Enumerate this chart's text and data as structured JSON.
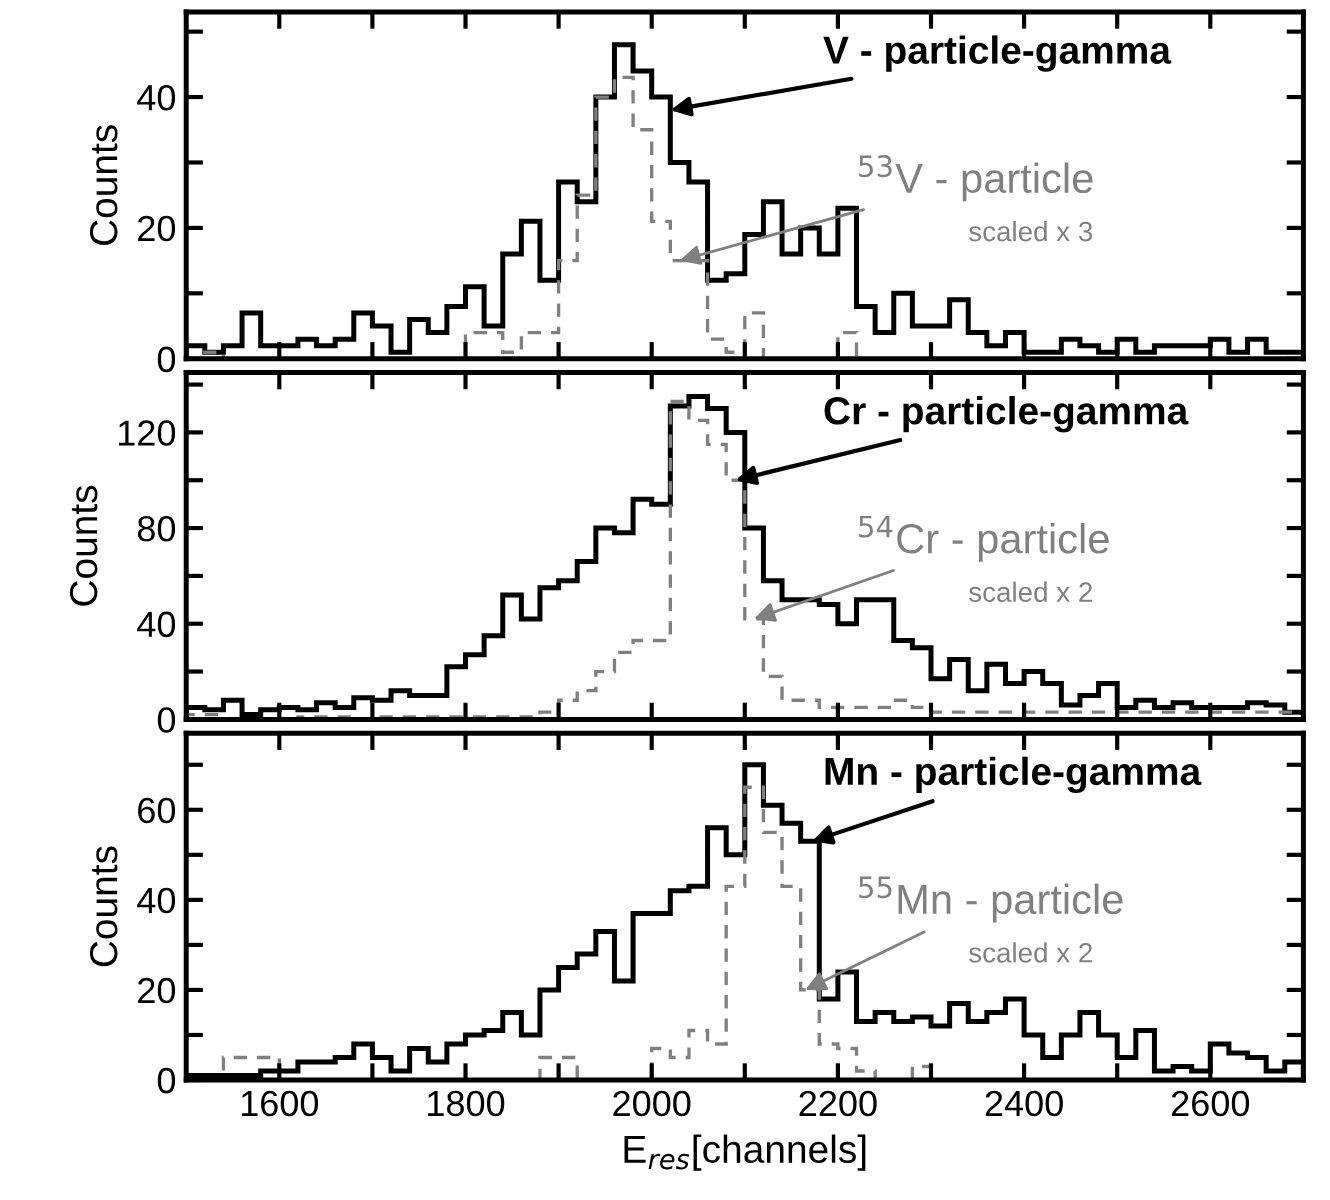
{
  "chart_data": [
    {
      "type": "histogram",
      "ylabel": "Counts",
      "bins": [
        1500,
        1520,
        1540,
        1560,
        1580,
        1600,
        1620,
        1640,
        1660,
        1680,
        1700,
        1720,
        1740,
        1760,
        1780,
        1800,
        1820,
        1840,
        1860,
        1880,
        1900,
        1920,
        1940,
        1960,
        1980,
        2000,
        2020,
        2040,
        2060,
        2080,
        2100,
        2120,
        2140,
        2160,
        2180,
        2200,
        2220,
        2240,
        2260,
        2280,
        2300,
        2320,
        2340,
        2360,
        2380,
        2400,
        2420,
        2440,
        2460,
        2480,
        2500,
        2520,
        2540,
        2560,
        2580,
        2600,
        2620,
        2640,
        2660,
        2680,
        2700
      ],
      "series": [
        {
          "color": "#000000",
          "line_style": "solid",
          "values": [
            2,
            1,
            2,
            7,
            2,
            2,
            3,
            2,
            3,
            7,
            5,
            1,
            6,
            4,
            8,
            11,
            5,
            16,
            21,
            12,
            27,
            24,
            40,
            48,
            44,
            40,
            30,
            27,
            12,
            13,
            19,
            24,
            16,
            20,
            16,
            23,
            8,
            4,
            10,
            5,
            5,
            9,
            4,
            2,
            4,
            1,
            1,
            3,
            2,
            1,
            3,
            1,
            2,
            2,
            2,
            3,
            1,
            3,
            1,
            1
          ]
        },
        {
          "color": "#808080",
          "line_style": "dashed",
          "values": [
            0,
            1,
            0,
            0,
            0,
            0,
            0,
            0,
            0,
            0,
            0,
            0,
            0,
            0,
            0,
            4,
            4,
            1,
            4,
            4,
            15,
            25,
            40,
            43,
            35,
            21,
            15,
            15,
            3,
            1,
            7,
            0,
            0,
            0,
            0,
            4,
            0,
            0,
            0,
            0,
            0,
            0,
            0,
            0,
            0,
            0,
            0,
            0,
            0,
            0,
            0,
            0,
            0,
            0,
            0,
            0,
            0,
            0,
            0,
            0
          ]
        }
      ],
      "annotations": [
        {
          "text": "V - particle-gamma",
          "x": 2020,
          "y": 38
        },
        {
          "text": "$^{53}$V - particle",
          "x": 2030,
          "y": 15
        },
        "scaled x 3"
      ],
      "xlim": [
        1500,
        2700
      ],
      "xticks": [
        {
          "value": 1600,
          "label": null
        },
        {
          "value": 1700,
          "label": null
        },
        {
          "value": 1800,
          "label": null
        },
        {
          "value": 1900,
          "label": null
        },
        {
          "value": 2000,
          "label": null
        },
        {
          "value": 2100,
          "label": null
        },
        {
          "value": 2200,
          "label": null
        },
        {
          "value": 2300,
          "label": null
        },
        {
          "value": 2400,
          "label": null
        },
        {
          "value": 2500,
          "label": null
        },
        {
          "value": 2600,
          "label": null
        }
      ],
      "ylim": [
        0,
        53
      ],
      "yticks": [
        0,
        {
          "value": 10,
          "label": null
        },
        20,
        {
          "value": 30,
          "label": null
        },
        40,
        {
          "value": 50,
          "label": null
        }
      ],
      "tick_labels": "y",
      "grid": false,
      "legend": false
    },
    {
      "type": "histogram",
      "ylabel": "Counts",
      "bins": [
        1500,
        1520,
        1540,
        1560,
        1580,
        1600,
        1620,
        1640,
        1660,
        1680,
        1700,
        1720,
        1740,
        1760,
        1780,
        1800,
        1820,
        1840,
        1860,
        1880,
        1900,
        1920,
        1940,
        1960,
        1980,
        2000,
        2020,
        2040,
        2060,
        2080,
        2100,
        2120,
        2140,
        2160,
        2180,
        2200,
        2220,
        2240,
        2260,
        2280,
        2300,
        2320,
        2340,
        2360,
        2380,
        2400,
        2420,
        2440,
        2460,
        2480,
        2500,
        2520,
        2540,
        2560,
        2580,
        2600,
        2620,
        2640,
        2660,
        2680,
        2700
      ],
      "series": [
        {
          "color": "#000000",
          "line_style": "solid",
          "values": [
            5,
            4,
            8,
            2,
            4,
            5,
            4,
            7,
            5,
            9,
            8,
            12,
            10,
            10,
            22,
            27,
            35,
            52,
            42,
            55,
            58,
            66,
            80,
            78,
            92,
            90,
            131,
            135,
            130,
            120,
            80,
            58,
            50,
            50,
            48,
            40,
            50,
            50,
            33,
            30,
            17,
            25,
            12,
            23,
            15,
            20,
            15,
            6,
            10,
            15,
            5,
            8,
            5,
            7,
            5,
            5,
            5,
            7,
            6,
            3
          ]
        },
        {
          "color": "#808080",
          "line_style": "dashed",
          "values": [
            2,
            2,
            0,
            0,
            0,
            0,
            1,
            1,
            1,
            0,
            1,
            1,
            1,
            1,
            1,
            1,
            1,
            1,
            1,
            3,
            8,
            12,
            20,
            28,
            33,
            33,
            133,
            125,
            115,
            100,
            42,
            18,
            8,
            8,
            5,
            5,
            5,
            5,
            8,
            5,
            3,
            3,
            3,
            3,
            3,
            3,
            3,
            3,
            3,
            3,
            3,
            3,
            3,
            3,
            3,
            3,
            3,
            3,
            3,
            3
          ]
        }
      ],
      "annotations": [
        {
          "text": "Cr - particle-gamma",
          "x": 2090,
          "y": 100
        },
        {
          "text": "$^{54}$Cr - particle",
          "x": 2110,
          "y": 42
        },
        "scaled x 2"
      ],
      "xlim": [
        1500,
        2700
      ],
      "xticks": [
        {
          "value": 1600,
          "label": null
        },
        {
          "value": 1700,
          "label": null
        },
        {
          "value": 1800,
          "label": null
        },
        {
          "value": 1900,
          "label": null
        },
        {
          "value": 2000,
          "label": null
        },
        {
          "value": 2100,
          "label": null
        },
        {
          "value": 2200,
          "label": null
        },
        {
          "value": 2300,
          "label": null
        },
        {
          "value": 2400,
          "label": null
        },
        {
          "value": 2500,
          "label": null
        },
        {
          "value": 2600,
          "label": null
        }
      ],
      "ylim": [
        0,
        145
      ],
      "yticks": [
        0,
        {
          "value": 20,
          "label": null
        },
        40,
        {
          "value": 60,
          "label": null
        },
        80,
        {
          "value": 100,
          "label": null
        },
        120,
        {
          "value": 140,
          "label": null
        }
      ],
      "tick_labels": "y",
      "grid": false,
      "legend": false
    },
    {
      "type": "histogram",
      "ylabel": "Counts",
      "xlabel": "E$_{res}$[channels]",
      "bins": [
        1500,
        1520,
        1540,
        1560,
        1580,
        1600,
        1620,
        1640,
        1660,
        1680,
        1700,
        1720,
        1740,
        1760,
        1780,
        1800,
        1820,
        1840,
        1860,
        1880,
        1900,
        1920,
        1940,
        1960,
        1980,
        2000,
        2020,
        2040,
        2060,
        2080,
        2100,
        2120,
        2140,
        2160,
        2180,
        2200,
        2220,
        2240,
        2260,
        2280,
        2300,
        2320,
        2340,
        2360,
        2380,
        2400,
        2420,
        2440,
        2460,
        2480,
        2500,
        2520,
        2540,
        2560,
        2580,
        2600,
        2620,
        2640,
        2660,
        2680,
        2700
      ],
      "series": [
        {
          "color": "#000000",
          "line_style": "solid",
          "values": [
            1,
            1,
            1,
            1,
            2,
            2,
            4,
            4,
            5,
            8,
            5,
            2,
            7,
            4,
            8,
            10,
            11,
            15,
            10,
            20,
            25,
            28,
            33,
            22,
            37,
            37,
            42,
            43,
            56,
            50,
            70,
            61,
            57,
            53,
            18,
            24,
            13,
            15,
            13,
            14,
            12,
            17,
            13,
            15,
            18,
            10,
            5,
            10,
            15,
            10,
            5,
            11,
            2,
            3,
            2,
            8,
            6,
            5,
            2,
            4
          ]
        },
        {
          "color": "#808080",
          "line_style": "dashed",
          "values": [
            0,
            0,
            5,
            5,
            5,
            0,
            0,
            0,
            0,
            0,
            0,
            0,
            0,
            0,
            0,
            0,
            0,
            0,
            0,
            5,
            5,
            0,
            0,
            0,
            0,
            7,
            5,
            11,
            8,
            43,
            65,
            55,
            43,
            20,
            8,
            7,
            2,
            0,
            0,
            3,
            0,
            0,
            0,
            0,
            0,
            0,
            0,
            0,
            0,
            0,
            0,
            0,
            0,
            0,
            0,
            0,
            0,
            0,
            0,
            0
          ]
        }
      ],
      "annotations": [
        {
          "text": "Mn - particle-gamma",
          "x": 2172,
          "y": 53
        },
        {
          "text": "$^{55}$Mn - particle",
          "x": 2165,
          "y": 20
        },
        "scaled x 2"
      ],
      "xlim": [
        1500,
        2700
      ],
      "xticks": [
        1600,
        {
          "value": 1700,
          "label": null
        },
        1800,
        {
          "value": 1900,
          "label": null
        },
        2000,
        {
          "value": 2100,
          "label": null
        },
        2200,
        {
          "value": 2300,
          "label": null
        },
        2400,
        {
          "value": 2500,
          "label": null
        },
        2600
      ],
      "ylim": [
        0,
        77
      ],
      "yticks": [
        0,
        {
          "value": 10,
          "label": null
        },
        20,
        {
          "value": 30,
          "label": null
        },
        40,
        {
          "value": 50,
          "label": null
        },
        60,
        {
          "value": 70,
          "label": null
        }
      ],
      "grid": false,
      "legend": false
    }
  ]
}
